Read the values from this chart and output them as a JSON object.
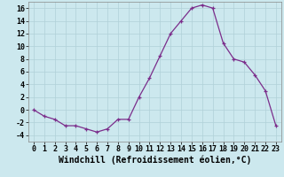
{
  "x": [
    0,
    1,
    2,
    3,
    4,
    5,
    6,
    7,
    8,
    9,
    10,
    11,
    12,
    13,
    14,
    15,
    16,
    17,
    18,
    19,
    20,
    21,
    22,
    23
  ],
  "y": [
    0,
    -1,
    -1.5,
    -2.5,
    -2.5,
    -3,
    -3.5,
    -3,
    -1.5,
    -1.5,
    2,
    5,
    8.5,
    12,
    14,
    16,
    16.5,
    16,
    10.5,
    8,
    7.5,
    5.5,
    3,
    -2.5
  ],
  "line_color": "#7b2d8b",
  "marker": "+",
  "marker_color": "#7b2d8b",
  "bg_color": "#cce8ee",
  "grid_color": "#b0d0d8",
  "xlabel": "Windchill (Refroidissement éolien,°C)",
  "xlabel_fontsize": 7,
  "tick_fontsize": 6,
  "ylim": [
    -5,
    17
  ],
  "xlim": [
    -0.5,
    23.5
  ],
  "yticks": [
    -4,
    -2,
    0,
    2,
    4,
    6,
    8,
    10,
    12,
    14,
    16
  ],
  "xticks": [
    0,
    1,
    2,
    3,
    4,
    5,
    6,
    7,
    8,
    9,
    10,
    11,
    12,
    13,
    14,
    15,
    16,
    17,
    18,
    19,
    20,
    21,
    22,
    23
  ]
}
